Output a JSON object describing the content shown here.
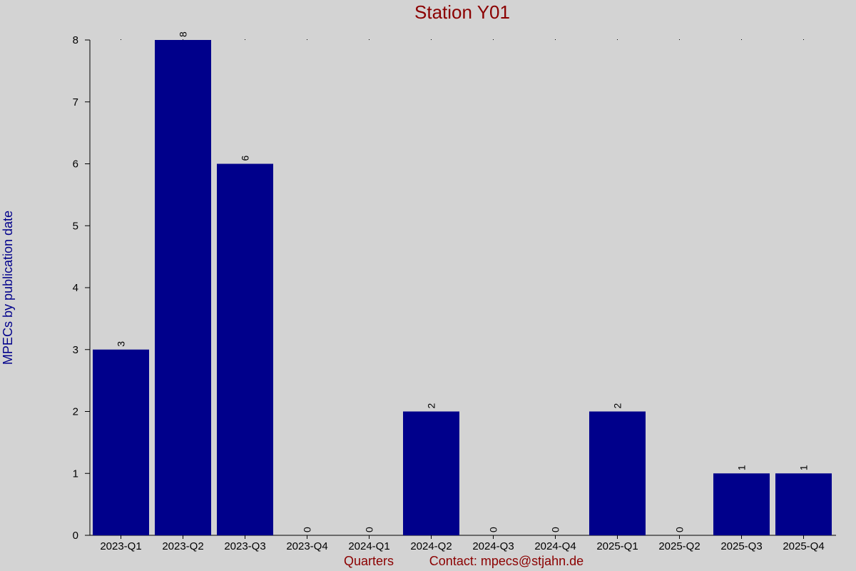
{
  "chart_data": {
    "type": "bar",
    "title": "Station Y01",
    "xlabel": "Quarters",
    "ylabel": "MPECs by publication date",
    "footer": "Contact: mpecs@stjahn.de",
    "categories": [
      "2023-Q1",
      "2023-Q2",
      "2023-Q3",
      "2023-Q4",
      "2024-Q1",
      "2024-Q2",
      "2024-Q3",
      "2024-Q4",
      "2025-Q1",
      "2025-Q2",
      "2025-Q3",
      "2025-Q4"
    ],
    "values": [
      3,
      8,
      6,
      0,
      0,
      2,
      0,
      0,
      2,
      0,
      1,
      1
    ],
    "ylim": [
      0,
      8
    ],
    "yticks": [
      0,
      1,
      2,
      3,
      4,
      5,
      6,
      7,
      8
    ],
    "bar_color": "#00008b",
    "background": "#d3d3d3",
    "grid": false,
    "data_labels": true
  }
}
